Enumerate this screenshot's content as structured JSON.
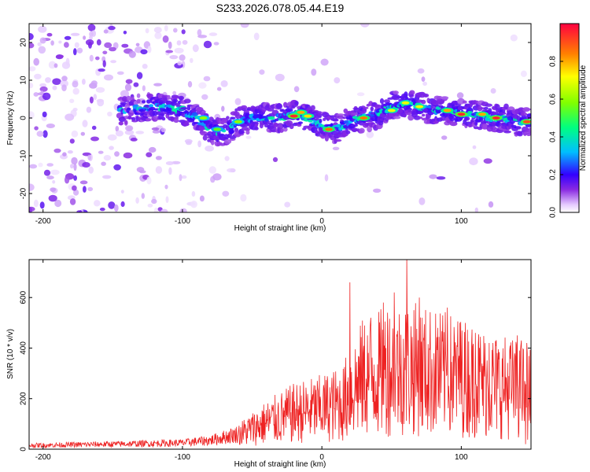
{
  "title": "S233.2026.078.05.44.E19",
  "chart_data": [
    {
      "type": "heatmap",
      "xlabel": "Height of straight line (km)",
      "ylabel": "Frequency (Hz)",
      "xlim": [
        -210,
        150
      ],
      "ylim": [
        -25,
        25
      ],
      "xticks": [
        -200,
        -100,
        0,
        100
      ],
      "xtick_labels": [
        "-200",
        "-100",
        "0",
        "100"
      ],
      "yticks": [
        -20,
        -10,
        0,
        10,
        20
      ],
      "ytick_labels": [
        "-20",
        "-10",
        "0",
        "10",
        "20"
      ],
      "colorbar": {
        "label": "Normalized spectral amplitude",
        "range": [
          0,
          1
        ],
        "ticks": [
          0.0,
          0.2,
          0.4,
          0.6,
          0.8
        ],
        "tick_labels": [
          "0.0",
          "0.2",
          "0.4",
          "0.6",
          "0.8"
        ]
      },
      "ridge_center": [
        [
          -140,
          2
        ],
        [
          -120,
          3
        ],
        [
          -100,
          2
        ],
        [
          -90,
          0
        ],
        [
          -80,
          -3
        ],
        [
          -70,
          -4
        ],
        [
          -60,
          -1
        ],
        [
          -50,
          0
        ],
        [
          -40,
          0
        ],
        [
          -30,
          0
        ],
        [
          -20,
          1
        ],
        [
          -10,
          0
        ],
        [
          0,
          -2
        ],
        [
          10,
          -3
        ],
        [
          20,
          -1
        ],
        [
          30,
          0
        ],
        [
          40,
          1
        ],
        [
          50,
          3
        ],
        [
          60,
          4
        ],
        [
          70,
          3
        ],
        [
          80,
          2
        ],
        [
          90,
          2
        ],
        [
          100,
          1
        ],
        [
          110,
          1
        ],
        [
          120,
          0
        ],
        [
          130,
          0
        ],
        [
          140,
          -1
        ],
        [
          150,
          -1
        ]
      ],
      "peak_points": [
        [
          -20,
          0.5,
          0.95
        ],
        [
          100,
          1,
          0.95
        ],
        [
          125,
          0,
          0.95
        ],
        [
          147,
          -1,
          0.9
        ],
        [
          30,
          0,
          0.85
        ],
        [
          -15,
          1.5,
          0.8
        ],
        [
          5,
          -3,
          0.85
        ],
        [
          115,
          1,
          0.8
        ],
        [
          -10,
          0.5,
          0.75
        ],
        [
          90,
          2,
          0.8
        ],
        [
          60,
          4,
          0.7
        ],
        [
          70,
          3,
          0.7
        ],
        [
          50,
          2,
          0.7
        ],
        [
          -60,
          -1,
          0.6
        ],
        [
          -85,
          0,
          0.6
        ],
        [
          -75,
          -3,
          0.55
        ]
      ]
    },
    {
      "type": "line",
      "xlabel": "Height of straight line (km)",
      "ylabel": "SNR (10 * v/v)",
      "xlim": [
        -210,
        150
      ],
      "ylim": [
        0,
        750
      ],
      "xticks": [
        -200,
        -100,
        0,
        100
      ],
      "xtick_labels": [
        "-200",
        "-100",
        "0",
        "100"
      ],
      "yticks": [
        0,
        200,
        400,
        600
      ],
      "ytick_labels": [
        "0",
        "200",
        "400",
        "600"
      ],
      "color": "#ee2222",
      "envelope_profile": [
        [
          -210,
          15
        ],
        [
          -150,
          20
        ],
        [
          -100,
          25
        ],
        [
          -80,
          35
        ],
        [
          -60,
          60
        ],
        [
          -40,
          110
        ],
        [
          -20,
          150
        ],
        [
          0,
          170
        ],
        [
          15,
          190
        ],
        [
          20,
          240
        ],
        [
          30,
          300
        ],
        [
          50,
          330
        ],
        [
          60,
          340
        ],
        [
          80,
          320
        ],
        [
          100,
          300
        ],
        [
          120,
          270
        ],
        [
          140,
          250
        ],
        [
          150,
          230
        ]
      ],
      "spikes": [
        [
          20,
          660
        ],
        [
          61,
          760
        ],
        [
          70,
          600
        ],
        [
          52,
          620
        ],
        [
          44,
          580
        ],
        [
          47,
          540
        ],
        [
          35,
          520
        ],
        [
          66,
          550
        ],
        [
          83,
          480
        ],
        [
          90,
          560
        ],
        [
          99,
          500
        ],
        [
          110,
          460
        ],
        [
          120,
          420
        ],
        [
          140,
          450
        ],
        [
          143,
          430
        ],
        [
          135,
          410
        ],
        [
          146,
          20
        ],
        [
          147,
          420
        ]
      ]
    }
  ]
}
